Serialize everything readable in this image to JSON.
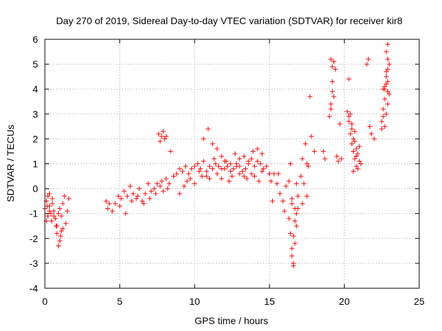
{
  "chart_data": {
    "type": "scatter",
    "title": "Day 270 of 2019, Sidereal Day-to-day VTEC variation (SDTVAR) for receiver kir8",
    "xlabel": "GPS time / hours",
    "ylabel": "SDTVAR / TECUs",
    "xlim": [
      0,
      25
    ],
    "ylim": [
      -4,
      6
    ],
    "xticks": [
      0,
      5,
      10,
      15,
      20,
      25
    ],
    "yticks": [
      -4,
      -3,
      -2,
      -1,
      0,
      1,
      2,
      3,
      4,
      5,
      6
    ],
    "grid": true,
    "marker": "+",
    "color": "#ff0000",
    "series": [
      {
        "name": "SDTVAR",
        "x": [
          0.0,
          0.1,
          0.2,
          0.3,
          0.4,
          0.5,
          0.6,
          0.7,
          0.8,
          0.9,
          1.0,
          1.1,
          1.2,
          1.3,
          1.5,
          1.6,
          0.1,
          0.2,
          0.3,
          0.5,
          0.8,
          1.0,
          1.2,
          1.4,
          0.3,
          0.6,
          0.9,
          1.1,
          0.15,
          0.45,
          0.75,
          1.05,
          4.1,
          4.2,
          4.3,
          4.5,
          4.7,
          4.9,
          5.1,
          5.3,
          5.5,
          5.7,
          5.9,
          6.1,
          6.3,
          6.5,
          6.7,
          6.9,
          7.1,
          7.3,
          7.5,
          7.7,
          7.9,
          8.1,
          8.3,
          5.0,
          5.4,
          5.8,
          6.2,
          6.6,
          7.0,
          7.4,
          7.8,
          8.2,
          7.6,
          7.7,
          7.8,
          7.9,
          8.0,
          8.1,
          8.4,
          8.6,
          8.8,
          9.0,
          9.2,
          9.4,
          9.6,
          9.8,
          10.0,
          10.2,
          10.4,
          10.6,
          10.8,
          11.0,
          11.2,
          11.4,
          11.6,
          11.8,
          12.0,
          12.2,
          12.4,
          12.6,
          12.8,
          13.0,
          13.2,
          13.4,
          13.6,
          13.8,
          14.0,
          14.2,
          14.4,
          14.6,
          14.8,
          15.0,
          9.5,
          10.0,
          10.5,
          11.0,
          11.5,
          12.0,
          12.5,
          13.0,
          13.5,
          14.0,
          14.5,
          15.0,
          10.6,
          10.9,
          11.2,
          11.5,
          11.8,
          12.1,
          12.4,
          12.7,
          13.0,
          13.3,
          13.6,
          13.9,
          14.2,
          14.5,
          9.0,
          9.3,
          9.7,
          10.3,
          10.8,
          11.3,
          11.8,
          12.3,
          12.8,
          13.3,
          13.8,
          14.3,
          15.1,
          15.3,
          15.5,
          15.7,
          15.9,
          16.1,
          16.3,
          16.5,
          16.7,
          16.9,
          17.1,
          17.3,
          17.5,
          15.2,
          15.6,
          16.0,
          16.4,
          16.8,
          17.2,
          16.3,
          16.4,
          16.5,
          16.6,
          16.7,
          16.8,
          16.9,
          16.5,
          16.6,
          16.7,
          16.8,
          16.5,
          16.6,
          17.2,
          17.4,
          17.6,
          17.8,
          18.0,
          17.5,
          17.7,
          18.6,
          18.7,
          19.0,
          19.1,
          19.2,
          19.3,
          19.4,
          19.1,
          19.2,
          19.3,
          19.1,
          19.2,
          19.5,
          19.6,
          19.7,
          19.8,
          20.2,
          20.3,
          20.4,
          20.5,
          20.6,
          20.7,
          20.8,
          20.9,
          21.0,
          21.1,
          20.3,
          20.5,
          20.7,
          20.9,
          20.4,
          20.6,
          20.8,
          21.0,
          20.5,
          20.7,
          20.3,
          20.6,
          20.8,
          21.5,
          21.6,
          21.7,
          21.8,
          22.0,
          22.5,
          22.6,
          22.7,
          22.8,
          22.9,
          23.0,
          22.6,
          22.7,
          22.8,
          22.9,
          23.0,
          22.7,
          22.8,
          22.9,
          22.8,
          22.9,
          22.9,
          22.7,
          22.8,
          22.9,
          22.6,
          22.5
        ],
        "y": [
          -0.8,
          -0.5,
          -0.3,
          -0.7,
          -1.0,
          -0.6,
          -0.9,
          -1.2,
          -1.5,
          -1.0,
          -0.8,
          -1.1,
          -0.6,
          -0.3,
          -0.9,
          -0.4,
          -1.3,
          -1.1,
          -0.2,
          -0.4,
          -1.8,
          -2.1,
          -1.6,
          -1.4,
          -0.9,
          -1.1,
          -2.3,
          -1.7,
          -0.7,
          -1.3,
          -1.5,
          -1.9,
          -0.5,
          -0.8,
          -0.6,
          -0.9,
          -0.6,
          -0.3,
          -0.4,
          -0.1,
          -0.3,
          0.1,
          -0.2,
          -0.4,
          0.0,
          -0.5,
          -0.2,
          0.2,
          -0.1,
          0.0,
          0.2,
          0.1,
          -0.1,
          0.4,
          0.2,
          -0.7,
          -1.0,
          -0.5,
          -0.3,
          -0.6,
          -0.4,
          -0.2,
          0.3,
          0.0,
          2.2,
          1.9,
          2.1,
          2.3,
          2.0,
          2.1,
          1.5,
          0.5,
          0.6,
          0.8,
          0.7,
          0.9,
          0.6,
          0.8,
          0.9,
          1.0,
          0.8,
          1.1,
          0.7,
          0.9,
          0.8,
          1.0,
          0.9,
          0.8,
          1.1,
          0.9,
          0.7,
          0.8,
          1.0,
          0.9,
          0.7,
          0.8,
          1.0,
          1.2,
          0.9,
          1.1,
          1.0,
          0.8,
          0.9,
          0.6,
          0.3,
          0.2,
          0.5,
          0.4,
          0.6,
          0.8,
          0.5,
          0.6,
          0.4,
          0.5,
          0.7,
          0.6,
          2.0,
          2.4,
          1.8,
          1.6,
          1.3,
          1.1,
          1.0,
          1.4,
          1.2,
          1.3,
          1.1,
          1.5,
          1.6,
          1.4,
          -0.2,
          0.1,
          0.4,
          0.7,
          0.5,
          1.2,
          0.4,
          0.3,
          0.9,
          0.5,
          0.6,
          0.3,
          0.3,
          0.6,
          0.2,
          -0.2,
          -0.5,
          0.1,
          0.3,
          -0.4,
          -0.8,
          -0.3,
          0.5,
          0.2,
          -0.3,
          -0.5,
          0.6,
          -0.9,
          1.0,
          0.2,
          -0.6,
          -1.2,
          -1.8,
          -2.4,
          -3.0,
          -2.2,
          -1.5,
          -0.8,
          -2.7,
          -1.9,
          -1.3,
          -1.0,
          -0.6,
          -3.1,
          1.2,
          1.8,
          0.9,
          2.1,
          1.5,
          1.0,
          3.7,
          1.5,
          1.2,
          2.9,
          3.4,
          4.3,
          5.1,
          4.8,
          5.2,
          4.9,
          3.7,
          3.2,
          3.9,
          1.3,
          1.1,
          2.6,
          1.2,
          3.1,
          2.7,
          2.2,
          1.8,
          1.5,
          1.2,
          0.9,
          0.8,
          1.1,
          1.0,
          2.9,
          2.4,
          1.9,
          1.4,
          3.0,
          2.0,
          1.3,
          1.7,
          2.6,
          2.3,
          4.4,
          0.7,
          1.6,
          5.0,
          5.2,
          2.5,
          2.2,
          2.0,
          2.7,
          3.2,
          4.0,
          4.5,
          5.2,
          5.0,
          2.9,
          3.6,
          4.2,
          4.8,
          3.8,
          4.1,
          5.5,
          3.9,
          4.7,
          5.8,
          3.4,
          2.5,
          3.0,
          4.3,
          4.0,
          2.4
        ]
      }
    ]
  }
}
